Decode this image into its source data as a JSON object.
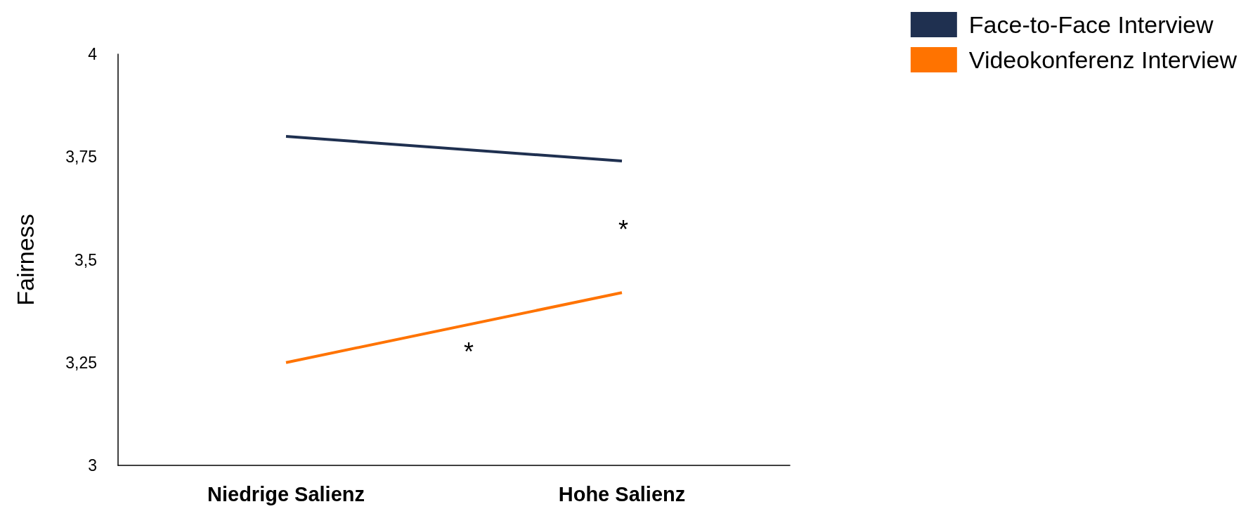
{
  "chart_data": {
    "type": "line",
    "ylabel": "Fairness",
    "categories": [
      "Niedrige Salienz",
      "Hohe Salienz"
    ],
    "series": [
      {
        "name": "Face-to-Face Interview",
        "color": "#1f3050",
        "values": [
          3.8,
          3.74
        ]
      },
      {
        "name": "Videokonferenz Interview",
        "color": "#ff7300",
        "values": [
          3.25,
          3.42
        ]
      }
    ],
    "ylim": [
      3,
      4
    ],
    "yticks": [
      3,
      {
        "value": 3.25,
        "label": "3,25"
      },
      {
        "value": 3.5,
        "label": "3,5"
      },
      {
        "value": 3.75,
        "label": "3,75"
      },
      4
    ],
    "annotations": [
      "*",
      "*"
    ],
    "grid": false,
    "legend": "top right",
    "marker": "none",
    "line_style": "solid"
  }
}
